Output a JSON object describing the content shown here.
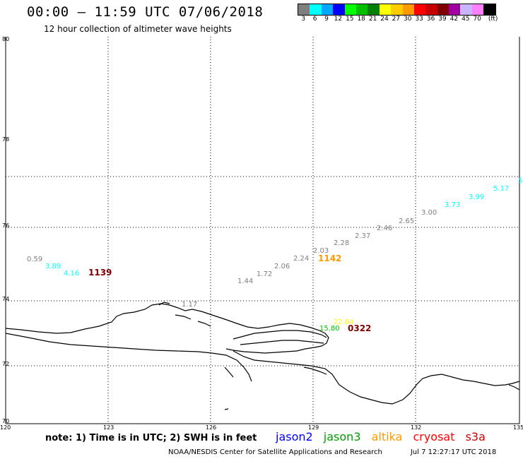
{
  "header": {
    "title": "00:00 – 11:59 UTC 07/06/2018",
    "subtitle": "12 hour collection of altimeter wave heights"
  },
  "colorbar": {
    "swatches": [
      "#7f7f7f",
      "#00ffff",
      "#00a8ff",
      "#0000ff",
      "#00ff00",
      "#00c000",
      "#008000",
      "#ffff00",
      "#ffcc00",
      "#ff9900",
      "#ff0000",
      "#c80000",
      "#800000",
      "#a000a0",
      "#c8b4ff",
      "#ff80ff",
      "#000000"
    ],
    "labels": [
      "3",
      "6",
      "9",
      "12",
      "15",
      "18",
      "21",
      "24",
      "27",
      "30",
      "33",
      "36",
      "39",
      "42",
      "45",
      "70",
      "(ft)"
    ]
  },
  "axes": {
    "lat_labels": [
      "80",
      "78",
      "76",
      "74",
      "72",
      "70"
    ],
    "lon_labels": [
      "120",
      "123",
      "126",
      "129",
      "132",
      "135"
    ]
  },
  "observations": [
    {
      "value": "0.59",
      "color": "#7f7f7f"
    },
    {
      "value": "3.89",
      "color": "#00ffff"
    },
    {
      "value": "4.16",
      "color": "#00ffff"
    },
    {
      "value": "1.17",
      "color": "#7f7f7f"
    },
    {
      "value": "1.44",
      "color": "#7f7f7f"
    },
    {
      "value": "1.72",
      "color": "#7f7f7f"
    },
    {
      "value": "2.06",
      "color": "#7f7f7f"
    },
    {
      "value": "2.24",
      "color": "#7f7f7f"
    },
    {
      "value": "2.03",
      "color": "#7f7f7f"
    },
    {
      "value": "2.28",
      "color": "#7f7f7f"
    },
    {
      "value": "2.37",
      "color": "#7f7f7f"
    },
    {
      "value": "2.46",
      "color": "#7f7f7f"
    },
    {
      "value": "2.65",
      "color": "#7f7f7f"
    },
    {
      "value": "3.00",
      "color": "#7f7f7f"
    },
    {
      "value": "3.73",
      "color": "#00ffff"
    },
    {
      "value": "3.99",
      "color": "#00ffff"
    },
    {
      "value": "5.17",
      "color": "#00ffff"
    },
    {
      "value": "5",
      "color": "#00ffff"
    },
    {
      "value": "22.64",
      "color": "#ffff00"
    },
    {
      "value": "15.80",
      "color": "#00c000"
    }
  ],
  "timestamps": [
    {
      "value": "1139",
      "color": "#800000"
    },
    {
      "value": "1142",
      "color": "#ff9900"
    },
    {
      "value": "0322",
      "color": "#800000"
    }
  ],
  "note": "note:  1) Time is in UTC;  2) SWH is in feet",
  "legend": [
    {
      "name": "jason2",
      "color": "#0000ff"
    },
    {
      "name": "jason3",
      "color": "#00a000"
    },
    {
      "name": "altika",
      "color": "#ff9900"
    },
    {
      "name": "cryosat",
      "color": "#ff0000"
    },
    {
      "name": "s3a",
      "color": "#c80000"
    }
  ],
  "footer": {
    "source": "NOAA/NESDIS Center for Satellite Applications and Research",
    "generated": "Jul  7 12:27:17 UTC 2018"
  }
}
